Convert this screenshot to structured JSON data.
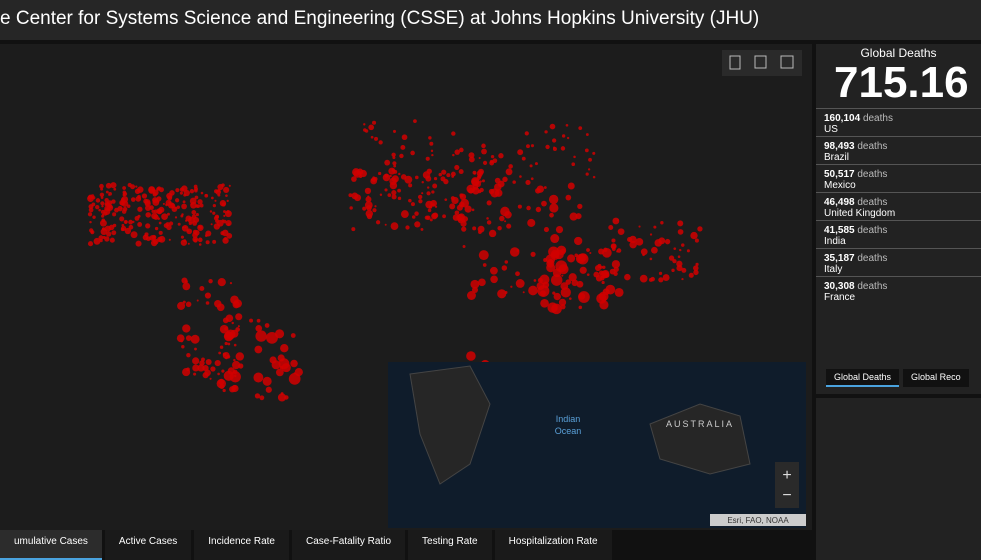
{
  "header": {
    "title": "e Center for Systems Science and Engineering (CSSE) at Johns Hopkins University (JHU)"
  },
  "panel": {
    "title": "Global Deaths",
    "total": "715.16",
    "items": [
      {
        "count": "160,104",
        "unit": "deaths",
        "country": "US"
      },
      {
        "count": "98,493",
        "unit": "deaths",
        "country": "Brazil"
      },
      {
        "count": "50,517",
        "unit": "deaths",
        "country": "Mexico"
      },
      {
        "count": "46,498",
        "unit": "deaths",
        "country": "United Kingdom"
      },
      {
        "count": "41,585",
        "unit": "deaths",
        "country": "India"
      },
      {
        "count": "35,187",
        "unit": "deaths",
        "country": "Italy"
      },
      {
        "count": "30,308",
        "unit": "deaths",
        "country": "France"
      }
    ],
    "tabs": [
      "Global Deaths",
      "Global Reco"
    ]
  },
  "map": {
    "ocean_label": [
      "Indian",
      "Ocean"
    ],
    "continent_label": "AUSTRALIA",
    "attribution": "Esri, FAO, NOAA",
    "zoom_in": "+",
    "zoom_out": "−"
  },
  "tabs": [
    "umulative Cases",
    "Active Cases",
    "Incidence Rate",
    "Case-Fatality Ratio",
    "Testing Rate",
    "Hospitalization Rate"
  ]
}
